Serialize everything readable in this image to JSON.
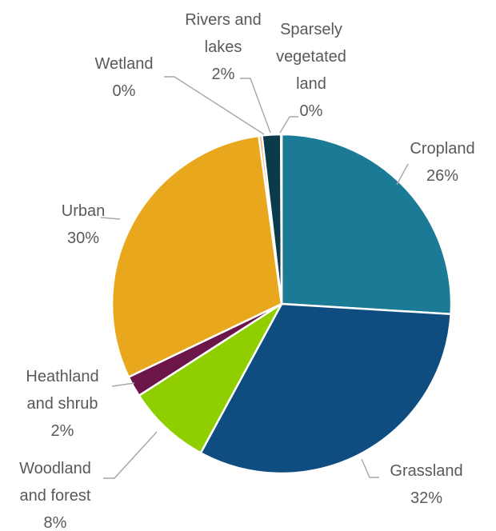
{
  "chart_data": {
    "type": "pie",
    "slices": [
      {
        "label": [
          "Cropland"
        ],
        "value_label": "26%",
        "value": 26,
        "color": "#1b7a96"
      },
      {
        "label": [
          "Grassland"
        ],
        "value_label": "32%",
        "value": 32,
        "color": "#0f4d80"
      },
      {
        "label": [
          "Woodland",
          "and forest"
        ],
        "value_label": "8%",
        "value": 8,
        "color": "#8fcf00"
      },
      {
        "label": [
          "Heathland",
          "and shrub"
        ],
        "value_label": "2%",
        "value": 2,
        "color": "#6b1548"
      },
      {
        "label": [
          "Urban"
        ],
        "value_label": "30%",
        "value": 30,
        "color": "#e8a71c"
      },
      {
        "label": [
          "Wetland"
        ],
        "value_label": "0%",
        "value": 0.3,
        "color": "#f4a261"
      },
      {
        "label": [
          "Rivers and",
          "lakes"
        ],
        "value_label": "2%",
        "value": 1.8,
        "color": "#0b3a4a"
      },
      {
        "label": [
          "Sparsely",
          "vegetated",
          "land"
        ],
        "value_label": "0%",
        "value": 0.05,
        "color": "#9fb3bd"
      }
    ],
    "start_angle_deg": 0,
    "direction": "clockwise",
    "legend": "none"
  }
}
